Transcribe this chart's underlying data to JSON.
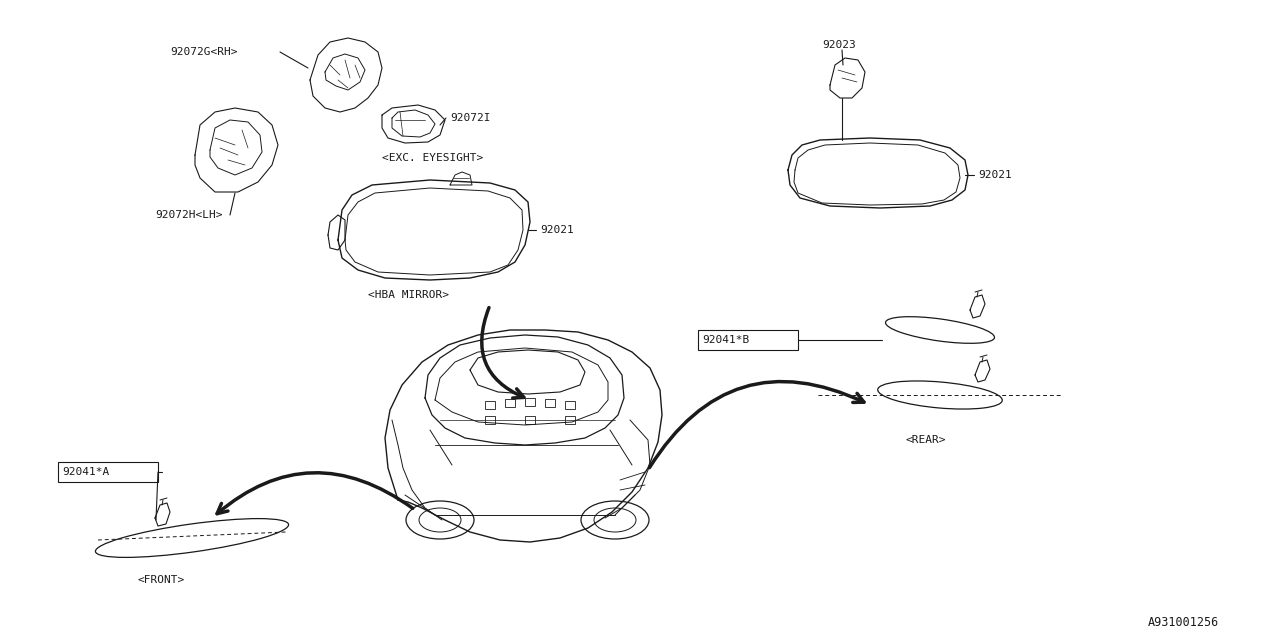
{
  "bg": "#ffffff",
  "lc": "#1a1a1a",
  "tc": "#1a1a1a",
  "font": "monospace",
  "diagram_id": "A931001256",
  "fs": 8.0,
  "labels": {
    "rh": "92072G<RH>",
    "eyesight_i": "92072I",
    "exc_es": "<EXC. EYESIGHT>",
    "lh": "92072H<LH>",
    "mirror_hba_num": "92021",
    "hba": "<HBA MIRROR>",
    "mount_23": "92023",
    "mirror_simple_num": "92021",
    "part_a": "92041*A",
    "front_lbl": "<FRONT>",
    "part_b": "92041*B",
    "rear_lbl": "<REAR>"
  },
  "arrow_lw": 2.5,
  "part_lw": 0.9
}
